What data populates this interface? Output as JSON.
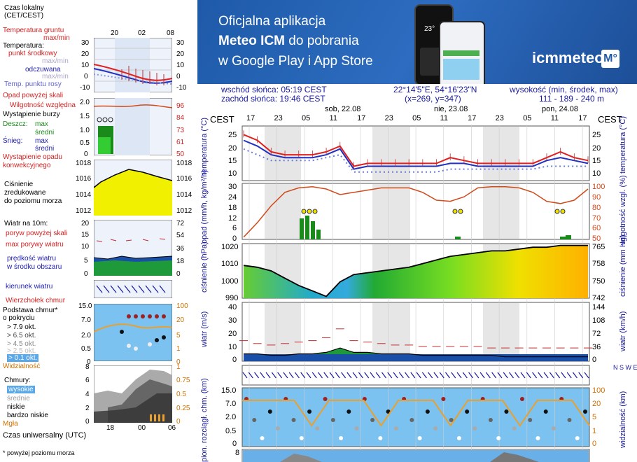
{
  "banner": {
    "line1": "Oficjalna aplikacja",
    "line2_bold": "Meteo ICM",
    "line2_rest": " do pobrania",
    "line3": "w Google Play i App Store",
    "logo": "icmmeteo",
    "logo_badge": "M°",
    "phone_temp": "23°"
  },
  "info": {
    "sunrise": "wschód słońca: 05:19 CEST",
    "sunset": "zachód słońca: 19:46 CEST",
    "coords": "22°14'5\"E, 54°16'23\"N",
    "grid": "(x=269,  y=347)",
    "elev_label": "wysokość (min, środek, max)",
    "elev_values": "111 - 189 - 240 m"
  },
  "legend": {
    "time_zone": "Czas lokalny\n(CET/CEST)",
    "hours_top": [
      "20",
      "02",
      "08"
    ],
    "temp_ground": "Temperatura gruntu",
    "maxmin": "max/min",
    "temperature": "Temperatura:",
    "mid_point": "punkt środkowy",
    "maxmin2": "max/min",
    "feels": "odczuwana",
    "maxmin3": "max/min",
    "dew": "Temp. punktu rosy",
    "temp_ticks_l": [
      "30",
      "20",
      "10",
      "0",
      "-10"
    ],
    "temp_ticks_r": [
      "30",
      "20",
      "10",
      "0",
      "-10"
    ],
    "precip_over": "Opad powyżej skali",
    "humidity": "Wilgotność względna",
    "storm": "Wystąpienie burzy",
    "rain": "Deszcz:",
    "rain_max": "max",
    "rain_mid": "średni",
    "snow": "Śnieg:",
    "snow_max": "max",
    "snow_mid": "średni",
    "precip_occ1": "Wystąpienie opadu",
    "precip_occ2": "konwekcyjnego",
    "precip_ticks_l": [
      "2.0",
      "1.5",
      "1.0",
      "0.5",
      "0"
    ],
    "precip_ticks_r": [
      "96",
      "84",
      "73",
      "61",
      "50"
    ],
    "pressure1": "Ciśnienie",
    "pressure2": "zredukowane",
    "pressure3": "do poziomu morza",
    "pres_ticks": [
      "1018",
      "1016",
      "1014",
      "1012"
    ],
    "wind": "Wiatr na 10m:",
    "gust_over": "poryw powyżej skali",
    "gust_max": "max porywy wiatru",
    "wind_speed1": "prędkość wiatru",
    "wind_speed2": "w środku obszaru",
    "wind_ticks_l": [
      "20",
      "15",
      "10",
      "5",
      "0"
    ],
    "wind_ticks_r": [
      "72",
      "54",
      "36",
      "18",
      "0"
    ],
    "wind_dir": "kierunek wiatru",
    "cloud_top": "Wierzchołek chmur",
    "cloud_base1": "Podstawa chmur*",
    "cloud_base2": "o pokryciu",
    "okt": [
      "> 7.9 okt.",
      "> 6.5 okt.",
      "> 4.5 okt.",
      "> 2.5 okt.",
      "> 0.1 okt."
    ],
    "cb_ticks_l": [
      "15.0",
      "7.0",
      "2.0",
      "0.5",
      "0"
    ],
    "cb_ticks_r": [
      "100",
      "20",
      "5",
      "1",
      "0"
    ],
    "visibility": "Widzialność",
    "clouds": "Chmury:",
    "high": "wysokie",
    "mid": "średnie",
    "low": "niskie",
    "very_low": "bardzo niskie",
    "fog": "Mgła",
    "cl_ticks_l": [
      "8",
      "6",
      "4",
      "2",
      "0"
    ],
    "cl_ticks_r": [
      "1",
      "0.75",
      "0.5",
      "0.25",
      "0"
    ],
    "hours_bottom": [
      "18",
      "00",
      "06"
    ],
    "utc": "Czas uniwersalny (UTC)",
    "footnote": "* powyżej poziomu morza"
  },
  "main": {
    "tz": "CEST",
    "tz_r": "CEST",
    "days": [
      "sob, 22.08",
      "nie, 23.08",
      "pon, 24.08"
    ],
    "hours": [
      "17",
      "23",
      "05",
      "11",
      "17",
      "23",
      "05",
      "11",
      "17",
      "23",
      "05",
      "11",
      "17"
    ],
    "ylabels": {
      "temp_l": "temperatura (°C)",
      "temp_r": "temperatura (°C)",
      "precip_l": "opad (mm/h, kg/m²/h)",
      "precip_r": "wilgotność wzgl. (%)",
      "pres_l": "ciśnienie (hPa)",
      "pres_r": "ciśnienie (mm Hg)",
      "wind_l": "wiatr (m/s)",
      "wind_r": "wiatr (km/h)",
      "cb_l": "pion. rozciągł. chm. (km)",
      "cb_r": "widzialność (km)"
    },
    "temp_ticks": [
      "25",
      "20",
      "15",
      "10"
    ],
    "precip_ticks_l": [
      "30",
      "24",
      "18",
      "12",
      "6",
      "0"
    ],
    "precip_ticks_r": [
      "100",
      "90",
      "80",
      "70",
      "60",
      "50"
    ],
    "pres_ticks_l": [
      "1020",
      "1010",
      "1000",
      "990"
    ],
    "pres_ticks_r": [
      "765",
      "758",
      "750",
      "742"
    ],
    "wind_ticks_l": [
      "40",
      "30",
      "20",
      "10",
      "0"
    ],
    "wind_ticks_r": [
      "144",
      "108",
      "72",
      "36",
      "0"
    ],
    "cb_ticks_l": [
      "15.0",
      "7.0",
      "2.0",
      "0.5",
      "0"
    ],
    "cb_ticks_r": [
      "100",
      "20",
      "5",
      "1",
      "0"
    ],
    "cl_tick": "8",
    "wind_icon_label": "N S W E"
  },
  "chart_data": [
    {
      "type": "line",
      "title": "temperatura",
      "ylabel": "temperatura (°C)",
      "ylim": [
        8,
        27
      ],
      "x": [
        "17",
        "20",
        "23",
        "02",
        "05",
        "08",
        "11",
        "14",
        "17",
        "20",
        "23",
        "02",
        "05",
        "08",
        "11",
        "14",
        "17",
        "20",
        "23",
        "02",
        "05",
        "08",
        "11",
        "14",
        "17",
        "20"
      ],
      "series": [
        {
          "name": "max",
          "values": [
            24,
            22,
            18,
            17,
            17,
            17,
            18,
            20,
            13,
            14,
            14,
            14,
            14,
            14,
            14,
            16,
            15,
            14,
            14,
            14,
            14,
            14,
            16,
            18,
            16,
            15
          ]
        },
        {
          "name": "punkt środkowy",
          "values": [
            22,
            20,
            17,
            16,
            16,
            16,
            17,
            19,
            12,
            13,
            13,
            13,
            13,
            13,
            13,
            14,
            14,
            13,
            13,
            13,
            13,
            13,
            15,
            16,
            15,
            14
          ]
        },
        {
          "name": "punkt rosy",
          "values": [
            19,
            17,
            15,
            15,
            15,
            15,
            16,
            17,
            11,
            11,
            11,
            11,
            11,
            11,
            11,
            12,
            12,
            12,
            12,
            12,
            12,
            12,
            13,
            13,
            13,
            13
          ]
        }
      ]
    },
    {
      "type": "line",
      "title": "wilgotność",
      "ylabel": "wilgotność wzgl. (%)",
      "ylim": [
        50,
        100
      ],
      "x": [
        "17",
        "20",
        "23",
        "02",
        "05",
        "08",
        "11",
        "14",
        "17",
        "20",
        "23",
        "02",
        "05",
        "08",
        "11",
        "14",
        "17",
        "20",
        "23",
        "02",
        "05",
        "08",
        "11",
        "14",
        "17",
        "20"
      ],
      "series": [
        {
          "name": "wilgotność",
          "values": [
            52,
            65,
            80,
            92,
            96,
            97,
            95,
            90,
            92,
            94,
            96,
            96,
            96,
            92,
            85,
            84,
            88,
            96,
            97,
            97,
            96,
            92,
            84,
            82,
            85,
            95
          ]
        }
      ]
    },
    {
      "type": "area",
      "title": "ciśnienie",
      "ylabel": "ciśnienie (hPa)",
      "ylim": [
        990,
        1020
      ],
      "x": [
        "17",
        "20",
        "23",
        "02",
        "05",
        "08",
        "11",
        "14",
        "17",
        "20",
        "23",
        "02",
        "05",
        "08",
        "11",
        "14",
        "17",
        "20",
        "23",
        "02",
        "05",
        "08",
        "11",
        "14",
        "17",
        "20"
      ],
      "series": [
        {
          "name": "ciśnienie",
          "values": [
            1008,
            1007,
            1005,
            1001,
            997,
            994,
            991,
            999,
            1003,
            1004,
            1005,
            1006,
            1007,
            1009,
            1011,
            1013,
            1014,
            1015,
            1016,
            1016,
            1017,
            1018,
            1018,
            1019,
            1019,
            1019
          ]
        }
      ]
    },
    {
      "type": "area",
      "title": "wiatr",
      "ylabel": "wiatr (m/s)",
      "ylim": [
        0,
        40
      ],
      "x": [
        "17",
        "20",
        "23",
        "02",
        "05",
        "08",
        "11",
        "14",
        "17",
        "20",
        "23",
        "02",
        "05",
        "08",
        "11",
        "14",
        "17",
        "20",
        "23",
        "02",
        "05",
        "08",
        "11",
        "14",
        "17",
        "20"
      ],
      "series": [
        {
          "name": "prędkość",
          "values": [
            5,
            5,
            4,
            4,
            5,
            5,
            6,
            9,
            6,
            6,
            5,
            5,
            5,
            4,
            4,
            4,
            4,
            4,
            4,
            3,
            3,
            3,
            3,
            3,
            3,
            3
          ]
        },
        {
          "name": "porywy",
          "values": [
            14,
            12,
            11,
            12,
            13,
            14,
            16,
            22,
            14,
            13,
            12,
            11,
            11,
            10,
            10,
            10,
            10,
            10,
            9,
            9,
            9,
            9,
            9,
            9,
            9,
            9
          ]
        }
      ]
    }
  ],
  "colors": {
    "temp": "#e02020",
    "temp_mid": "#2030c0",
    "humidity": "#d04a1a",
    "pressure_line": "#000000",
    "banner": "#1e5aa8",
    "label_blue": "#1a1aa0"
  }
}
